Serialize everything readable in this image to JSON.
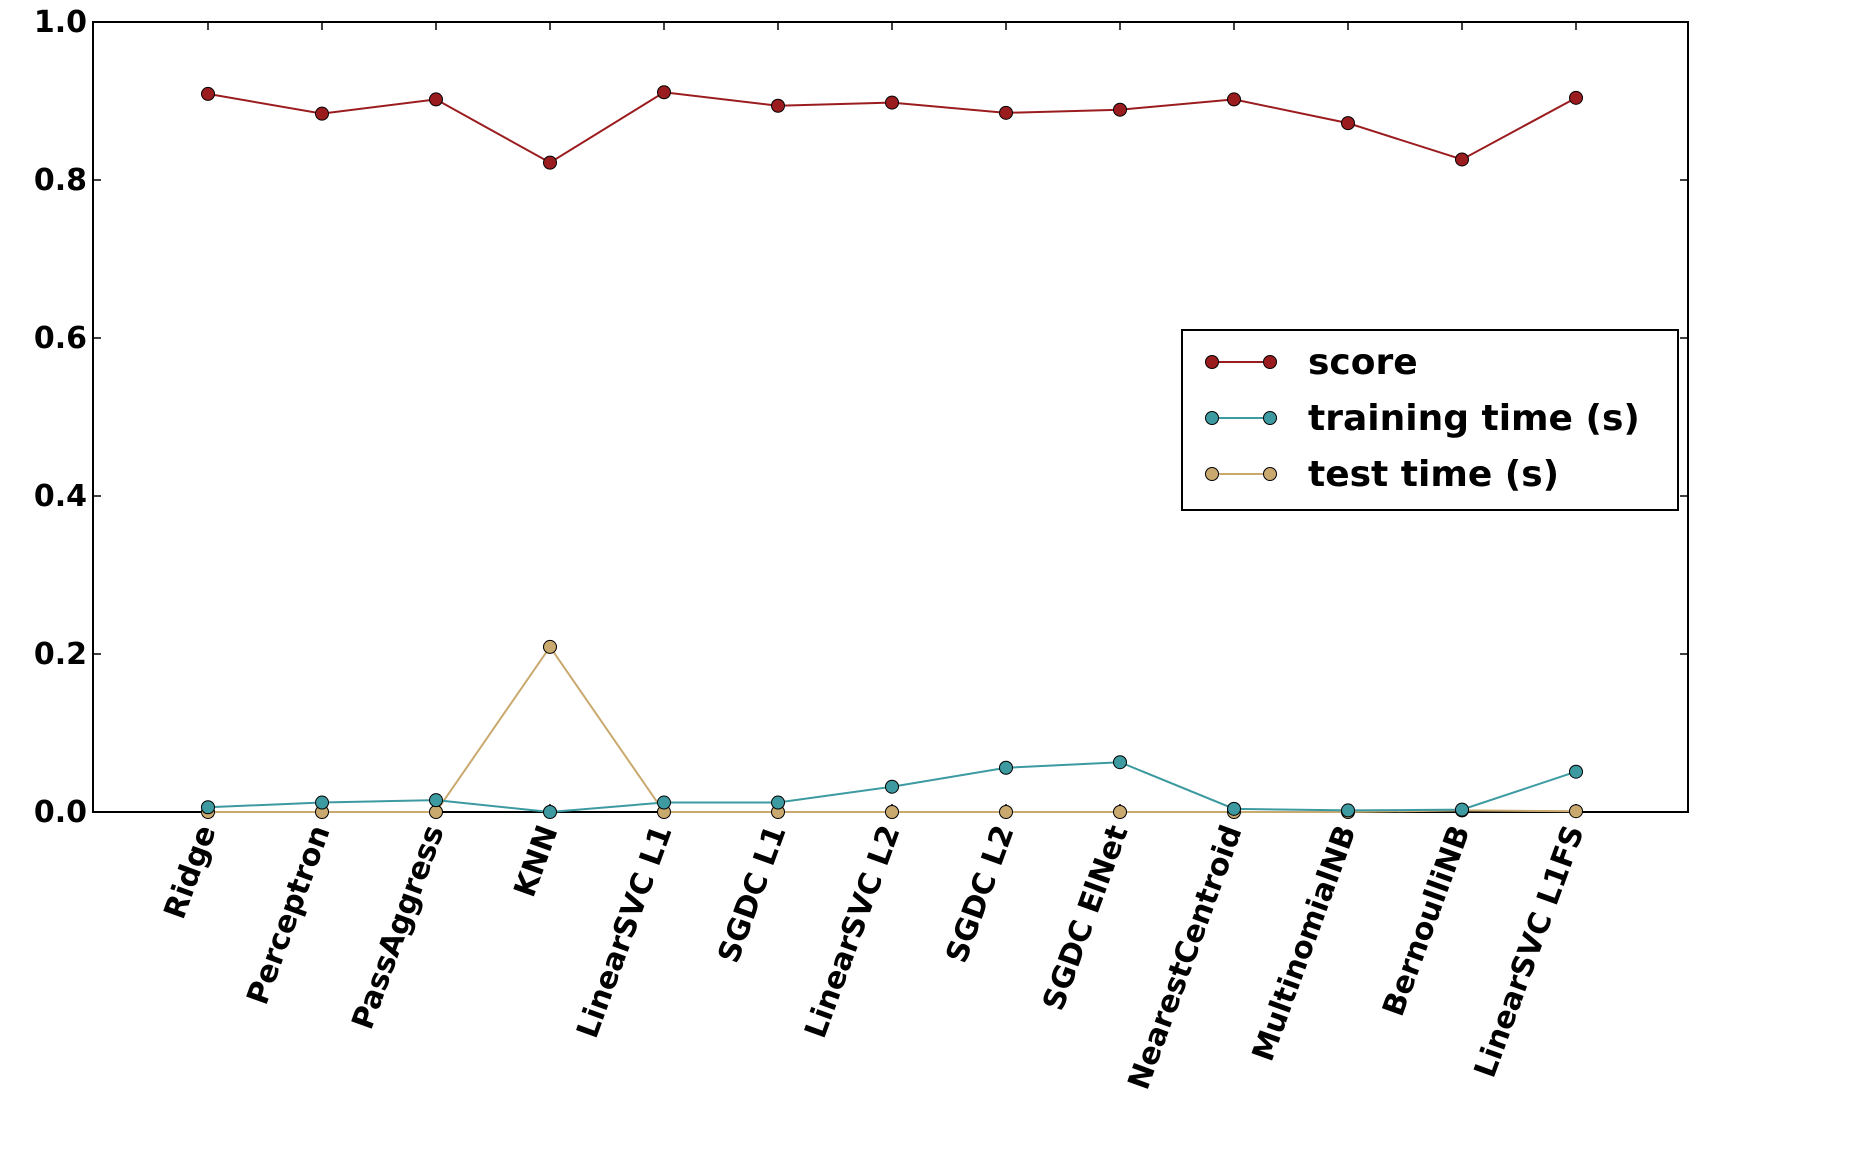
{
  "chart_data": {
    "type": "line",
    "categories": [
      "Ridge",
      "Perceptron",
      "PassAggress",
      "KNN",
      "LinearSVC L1",
      "SGDC L1",
      "LinearSVC L2",
      "SGDC L2",
      "SGDC ElNet",
      "NearestCentroid",
      "MultinomialNB",
      "BernoulliNB",
      "LinearSVC L1FS"
    ],
    "series": [
      {
        "name": "score",
        "color": "#9b1c1f",
        "values": [
          0.909,
          0.884,
          0.902,
          0.822,
          0.911,
          0.894,
          0.898,
          0.885,
          0.889,
          0.902,
          0.872,
          0.826,
          0.904
        ]
      },
      {
        "name": "training time (s)",
        "color": "#3c9aa0",
        "values": [
          0.006,
          0.012,
          0.015,
          0.0,
          0.012,
          0.012,
          0.032,
          0.056,
          0.063,
          0.004,
          0.002,
          0.003,
          0.051
        ]
      },
      {
        "name": "test time (s)",
        "color": "#c9a96e",
        "values": [
          0.0,
          0.0,
          0.0,
          0.209,
          0.0,
          0.0,
          0.0,
          0.0,
          0.0,
          0.0,
          0.0,
          0.002,
          0.001
        ]
      }
    ],
    "yticks": [
      "0.0",
      "0.2",
      "0.4",
      "0.6",
      "0.8",
      "1.0"
    ],
    "ylim": [
      0,
      1.0
    ],
    "legend_position": "center-right",
    "grid": false
  }
}
